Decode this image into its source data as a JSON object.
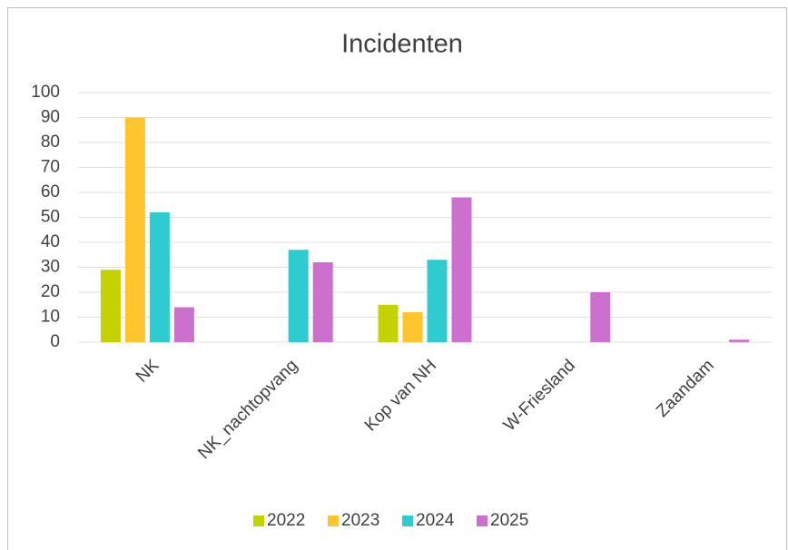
{
  "chart_data": {
    "type": "bar",
    "title": "Incidenten",
    "categories": [
      "NK",
      "NK_nachtopvang",
      "Kop van NH",
      "W-Friesland",
      "Zaandam"
    ],
    "series": [
      {
        "name": "2022",
        "color": "#c3d200",
        "values": [
          29,
          null,
          15,
          null,
          null
        ]
      },
      {
        "name": "2023",
        "color": "#ffc52f",
        "values": [
          90,
          null,
          12,
          null,
          null
        ]
      },
      {
        "name": "2024",
        "color": "#2ecbd1",
        "values": [
          52,
          37,
          33,
          null,
          null
        ]
      },
      {
        "name": "2025",
        "color": "#cc70cf",
        "values": [
          14,
          32,
          58,
          20,
          1
        ]
      }
    ],
    "ylim": [
      0,
      100
    ],
    "yticks": [
      0,
      10,
      20,
      30,
      40,
      50,
      60,
      70,
      80,
      90,
      100
    ],
    "grid": true,
    "legend": "bottom"
  }
}
